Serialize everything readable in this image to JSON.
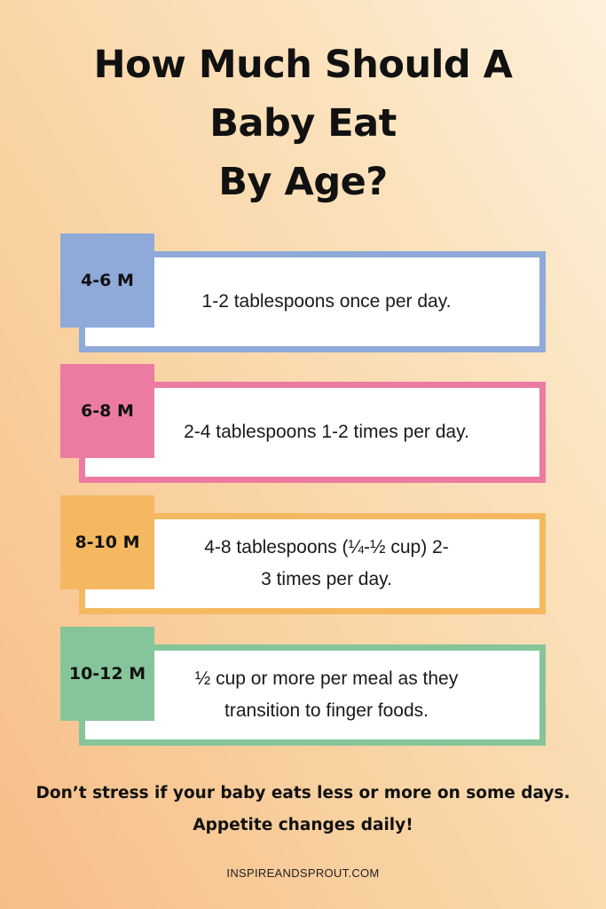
{
  "title": {
    "line1": "How Much Should A",
    "line2": "Baby Eat",
    "line3": "By Age?"
  },
  "cards": [
    {
      "age": "4-6 M",
      "text": "1-2 tablespoons once per day.",
      "color": "#8fa9d9"
    },
    {
      "age": "6-8 M",
      "text": "2-4 tablespoons 1-2 times per day.",
      "color": "#ec7ba2"
    },
    {
      "age": "8-10 M",
      "text": "4-8 tablespoons (¼-½ cup) 2-3 times per day.",
      "color": "#f5b861"
    },
    {
      "age": "10-12 M",
      "text": "½ cup or more per meal as they transition to finger foods.",
      "color": "#86c59a"
    }
  ],
  "footer": {
    "note_line1": "Don’t stress if your baby eats less or more on some days.",
    "note_line2": "Appetite changes daily!",
    "site": "INSPIREANDSPROUT.COM"
  }
}
